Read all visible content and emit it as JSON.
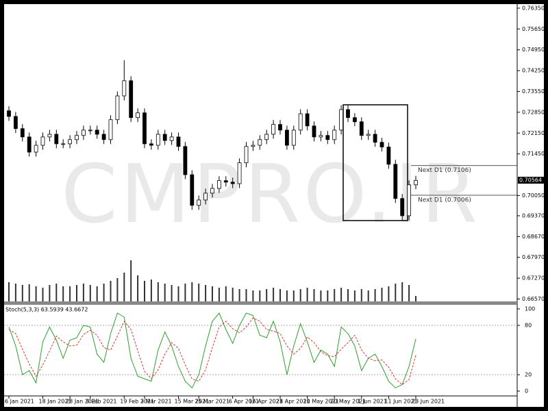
{
  "chart_data": [
    {
      "type": "candlestick",
      "watermark": "CMPRO.IR",
      "categories": [
        "6 Jan 2021",
        null,
        null,
        null,
        null,
        "18 Jan 2021",
        null,
        null,
        null,
        "28 Jan 2021",
        null,
        null,
        "9 Feb 2021",
        null,
        null,
        null,
        null,
        "19 Feb 2021",
        null,
        null,
        "3 Mar 2021",
        null,
        null,
        null,
        null,
        "15 Mar 2021",
        null,
        null,
        "25 Mar 2021",
        null,
        null,
        null,
        null,
        "6 Apr 2021",
        null,
        null,
        "16 Apr 2021",
        null,
        null,
        null,
        "28 Apr 2021",
        null,
        null,
        null,
        "10 May 2021",
        null,
        null,
        null,
        "20 May 2021",
        null,
        null,
        null,
        "1 Jun 2021",
        null,
        null,
        null,
        "11 Jun 2021",
        null,
        null,
        null,
        "23 Jun 2021"
      ],
      "open": [
        0.729,
        0.7271,
        0.723,
        0.7202,
        0.7151,
        0.7174,
        0.7202,
        0.7211,
        0.7179,
        0.7179,
        0.7193,
        0.7207,
        0.7225,
        0.7225,
        0.7211,
        0.7193,
        0.726,
        0.734,
        0.7391,
        0.7267,
        0.7283,
        0.7179,
        0.7174,
        0.7211,
        0.719,
        0.7202,
        0.717,
        0.7075,
        0.6972,
        0.699,
        0.7013,
        0.7029,
        0.7055,
        0.705,
        0.7045,
        0.7115,
        0.717,
        0.7174,
        0.7193,
        0.7211,
        0.7244,
        0.7225,
        0.7174,
        0.7225,
        0.728,
        0.7239,
        0.7202,
        0.7207,
        0.7193,
        0.7225,
        0.7294,
        0.7267,
        0.7253,
        0.7207,
        0.7211,
        0.7184,
        0.7168,
        0.711,
        0.6995,
        0.6937,
        0.7041
      ],
      "high": [
        0.7305,
        0.7286,
        0.7245,
        0.7217,
        0.7189,
        0.7217,
        0.7226,
        0.7226,
        0.7194,
        0.7208,
        0.7222,
        0.724,
        0.724,
        0.724,
        0.7226,
        0.7275,
        0.7355,
        0.746,
        0.7406,
        0.7298,
        0.7298,
        0.7194,
        0.7226,
        0.7226,
        0.7217,
        0.7217,
        0.7185,
        0.709,
        0.7005,
        0.7028,
        0.7044,
        0.707,
        0.707,
        0.7065,
        0.713,
        0.7185,
        0.7189,
        0.7208,
        0.7226,
        0.7259,
        0.7259,
        0.724,
        0.724,
        0.7295,
        0.7295,
        0.7254,
        0.7222,
        0.7222,
        0.724,
        0.7309,
        0.7309,
        0.7282,
        0.7268,
        0.7226,
        0.7226,
        0.7199,
        0.7183,
        0.7125,
        0.701,
        0.7056,
        0.7071
      ],
      "low": [
        0.7256,
        0.7215,
        0.7187,
        0.7136,
        0.7136,
        0.7159,
        0.7187,
        0.7164,
        0.7164,
        0.7164,
        0.7178,
        0.7192,
        0.721,
        0.7196,
        0.7178,
        0.7178,
        0.7245,
        0.7325,
        0.7252,
        0.7252,
        0.7164,
        0.7159,
        0.7159,
        0.7175,
        0.7175,
        0.7155,
        0.706,
        0.6957,
        0.6957,
        0.6975,
        0.6998,
        0.7014,
        0.7035,
        0.703,
        0.703,
        0.71,
        0.7155,
        0.7159,
        0.7178,
        0.7196,
        0.721,
        0.7159,
        0.7159,
        0.721,
        0.7224,
        0.7187,
        0.7187,
        0.7178,
        0.7178,
        0.721,
        0.7252,
        0.7238,
        0.7192,
        0.7192,
        0.7169,
        0.7153,
        0.7095,
        0.698,
        0.6922,
        0.6922,
        0.7026
      ],
      "close": [
        0.7271,
        0.723,
        0.7202,
        0.7151,
        0.7174,
        0.7202,
        0.7211,
        0.7179,
        0.7179,
        0.7193,
        0.7207,
        0.7225,
        0.7225,
        0.7211,
        0.7193,
        0.726,
        0.734,
        0.7391,
        0.7267,
        0.7283,
        0.7179,
        0.7174,
        0.7211,
        0.719,
        0.7202,
        0.717,
        0.7075,
        0.6972,
        0.699,
        0.7013,
        0.7029,
        0.7055,
        0.705,
        0.7045,
        0.7115,
        0.717,
        0.7174,
        0.7193,
        0.7211,
        0.7244,
        0.7225,
        0.7174,
        0.7225,
        0.728,
        0.7239,
        0.7202,
        0.7207,
        0.7193,
        0.7225,
        0.7294,
        0.7267,
        0.7253,
        0.7207,
        0.7211,
        0.7184,
        0.7168,
        0.711,
        0.6995,
        0.6937,
        0.7041,
        0.7056
      ],
      "volume": [
        28,
        26,
        24,
        25,
        22,
        20,
        24,
        26,
        22,
        22,
        24,
        26,
        24,
        22,
        26,
        30,
        34,
        42,
        60,
        38,
        30,
        32,
        28,
        26,
        24,
        22,
        26,
        28,
        26,
        24,
        22,
        20,
        22,
        20,
        18,
        18,
        16,
        16,
        18,
        20,
        18,
        16,
        16,
        18,
        20,
        18,
        16,
        16,
        18,
        20,
        18,
        16,
        18,
        16,
        18,
        20,
        22,
        26,
        28,
        24,
        8
      ],
      "ylim": [
        0.6649,
        0.7644
      ],
      "yticks": [
        {
          "value": 0.7635,
          "label": "0.76350"
        },
        {
          "value": 0.7565,
          "label": "0.75650"
        },
        {
          "value": 0.7495,
          "label": "0.74950"
        },
        {
          "value": 0.7425,
          "label": "0.74250"
        },
        {
          "value": 0.7355,
          "label": "0.73550"
        },
        {
          "value": 0.7285,
          "label": "0.72850"
        },
        {
          "value": 0.7215,
          "label": "0.72150"
        },
        {
          "value": 0.7145,
          "label": "0.71450"
        },
        {
          "value": 0.7005,
          "label": "0.70050"
        },
        {
          "value": 0.6937,
          "label": "0.69370"
        },
        {
          "value": 0.6867,
          "label": "0.68670"
        },
        {
          "value": 0.6797,
          "label": "0.67970"
        },
        {
          "value": 0.6727,
          "label": "0.67270"
        },
        {
          "value": 0.6657,
          "label": "0.66570"
        }
      ],
      "last_price": {
        "value": 0.70564,
        "label": "0.70564"
      },
      "annotations": [
        {
          "text": "Next D1 (0.7106)",
          "value": 0.7106
        },
        {
          "text": "Next D1 (0.7006)",
          "value": 0.7006
        }
      ]
    },
    {
      "type": "line",
      "title": "Stoch(5,3,3) 63.5939 43.6672",
      "series": [
        {
          "name": "Main",
          "color": "#2f9e2f",
          "values": [
            78,
            55,
            20,
            25,
            10,
            60,
            78,
            62,
            40,
            62,
            65,
            80,
            78,
            45,
            35,
            70,
            95,
            90,
            40,
            18,
            15,
            12,
            50,
            72,
            55,
            30,
            12,
            4,
            20,
            55,
            85,
            95,
            75,
            58,
            80,
            95,
            92,
            68,
            65,
            85,
            60,
            20,
            55,
            82,
            60,
            35,
            50,
            45,
            30,
            78,
            70,
            55,
            25,
            40,
            45,
            30,
            12,
            4,
            8,
            30,
            63.5939
          ]
        },
        {
          "name": "Signal",
          "color": "#e0342e",
          "dashed": true,
          "values": [
            75,
            70,
            51,
            33,
            18,
            32,
            49,
            67,
            60,
            55,
            56,
            69,
            74,
            68,
            53,
            50,
            67,
            85,
            75,
            49,
            24,
            15,
            26,
            45,
            59,
            52,
            32,
            15,
            12,
            26,
            53,
            78,
            85,
            76,
            71,
            78,
            89,
            85,
            75,
            73,
            70,
            55,
            45,
            52,
            66,
            59,
            48,
            43,
            42,
            51,
            59,
            68,
            50,
            40,
            37,
            38,
            29,
            15,
            8,
            14,
            43.6672
          ]
        }
      ],
      "ylim": [
        0,
        100
      ],
      "yticks": [
        0,
        20,
        80,
        100
      ],
      "levels": [
        20,
        80
      ]
    }
  ]
}
